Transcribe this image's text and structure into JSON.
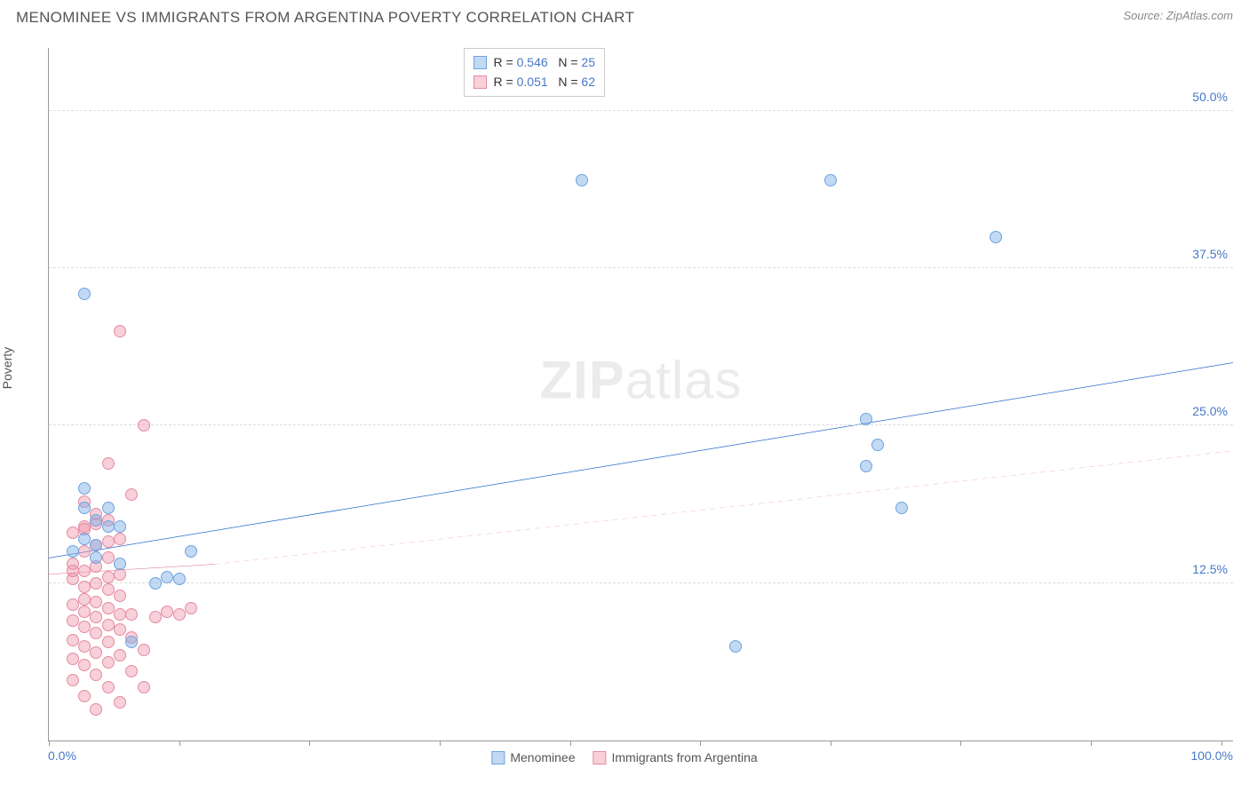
{
  "title": "MENOMINEE VS IMMIGRANTS FROM ARGENTINA POVERTY CORRELATION CHART",
  "source": "Source: ZipAtlas.com",
  "ylabel": "Poverty",
  "watermark_bold": "ZIP",
  "watermark_light": "atlas",
  "colors": {
    "series_a_fill": "rgba(120,170,230,0.45)",
    "series_a_stroke": "#6fa3dc",
    "series_b_fill": "rgba(240,150,170,0.45)",
    "series_b_stroke": "#e48aa2",
    "trend_a": "#2a6ad0",
    "trend_b": "#e06b88",
    "axis_text": "#4878c8",
    "grid": "#dddddd"
  },
  "chart": {
    "type": "scatter",
    "xlim": [
      0,
      100
    ],
    "ylim": [
      0,
      55
    ],
    "y_ticks": [
      12.5,
      25.0,
      37.5,
      50.0
    ],
    "y_tick_labels": [
      "12.5%",
      "25.0%",
      "37.5%",
      "50.0%"
    ],
    "x_ticks": [
      0,
      11,
      22,
      33,
      44,
      55,
      66,
      77,
      88,
      99
    ],
    "x_label_min": "0.0%",
    "x_label_max": "100.0%",
    "marker_radius": 7,
    "series_a": {
      "name": "Menominee",
      "R": "0.546",
      "N": "25",
      "points": [
        [
          3,
          35.5
        ],
        [
          66,
          44.5
        ],
        [
          80,
          40.0
        ],
        [
          69,
          25.5
        ],
        [
          70,
          23.5
        ],
        [
          69,
          21.8
        ],
        [
          72,
          18.5
        ],
        [
          58,
          7.5
        ],
        [
          3,
          18.5
        ],
        [
          4,
          17.5
        ],
        [
          5,
          17.0
        ],
        [
          3,
          16.0
        ],
        [
          6,
          17.0
        ],
        [
          5,
          18.5
        ],
        [
          12,
          15.0
        ],
        [
          9,
          12.5
        ],
        [
          10,
          13.0
        ],
        [
          11,
          12.8
        ],
        [
          4,
          14.5
        ],
        [
          3,
          20.0
        ],
        [
          4,
          15.5
        ],
        [
          6,
          14.0
        ],
        [
          2,
          15.0
        ],
        [
          45,
          44.5
        ],
        [
          7,
          7.8
        ]
      ],
      "trend": {
        "x1": 0,
        "y1": 14.5,
        "x2": 100,
        "y2": 30.0,
        "width": 3,
        "dash": ""
      }
    },
    "series_b": {
      "name": "Immigrants from Argentina",
      "R": "0.051",
      "N": "62",
      "points": [
        [
          6,
          32.5
        ],
        [
          8,
          25.0
        ],
        [
          5,
          22.0
        ],
        [
          7,
          19.5
        ],
        [
          3,
          19.0
        ],
        [
          4,
          18.0
        ],
        [
          5,
          17.5
        ],
        [
          3,
          17.0
        ],
        [
          2,
          16.5
        ],
        [
          6,
          16.0
        ],
        [
          4,
          15.5
        ],
        [
          3,
          15.0
        ],
        [
          5,
          14.5
        ],
        [
          2,
          14.0
        ],
        [
          4,
          13.8
        ],
        [
          3,
          13.5
        ],
        [
          6,
          13.2
        ],
        [
          5,
          13.0
        ],
        [
          2,
          12.8
        ],
        [
          4,
          12.5
        ],
        [
          3,
          12.2
        ],
        [
          5,
          12.0
        ],
        [
          6,
          11.5
        ],
        [
          3,
          11.2
        ],
        [
          4,
          11.0
        ],
        [
          2,
          10.8
        ],
        [
          5,
          10.5
        ],
        [
          3,
          10.2
        ],
        [
          6,
          10.0
        ],
        [
          7,
          10.0
        ],
        [
          4,
          9.8
        ],
        [
          2,
          9.5
        ],
        [
          5,
          9.2
        ],
        [
          3,
          9.0
        ],
        [
          6,
          8.8
        ],
        [
          4,
          8.5
        ],
        [
          7,
          8.2
        ],
        [
          2,
          8.0
        ],
        [
          5,
          7.8
        ],
        [
          3,
          7.5
        ],
        [
          8,
          7.2
        ],
        [
          4,
          7.0
        ],
        [
          6,
          6.8
        ],
        [
          2,
          6.5
        ],
        [
          5,
          6.2
        ],
        [
          3,
          6.0
        ],
        [
          7,
          5.5
        ],
        [
          4,
          5.2
        ],
        [
          2,
          4.8
        ],
        [
          5,
          4.2
        ],
        [
          8,
          4.2
        ],
        [
          3,
          3.5
        ],
        [
          6,
          3.0
        ],
        [
          4,
          2.5
        ],
        [
          9,
          9.8
        ],
        [
          10,
          10.2
        ],
        [
          11,
          10.0
        ],
        [
          12,
          10.5
        ],
        [
          3,
          16.8
        ],
        [
          4,
          17.2
        ],
        [
          2,
          13.5
        ],
        [
          5,
          15.8
        ]
      ],
      "trend_solid": {
        "x1": 0,
        "y1": 13.2,
        "x2": 14,
        "y2": 14.0,
        "width": 2,
        "dash": ""
      },
      "trend_dash": {
        "x1": 14,
        "y1": 14.0,
        "x2": 100,
        "y2": 23.0,
        "width": 1,
        "dash": "6,5"
      }
    }
  },
  "legend_top": {
    "rows": [
      {
        "swatch": "a",
        "r_label": "R =",
        "r_val": "0.546",
        "n_label": "N =",
        "n_val": "25"
      },
      {
        "swatch": "b",
        "r_label": "R =",
        "r_val": "0.051",
        "n_label": "N =",
        "n_val": "62"
      }
    ]
  },
  "legend_bottom": {
    "items": [
      {
        "swatch": "a",
        "label": "Menominee"
      },
      {
        "swatch": "b",
        "label": "Immigrants from Argentina"
      }
    ]
  }
}
